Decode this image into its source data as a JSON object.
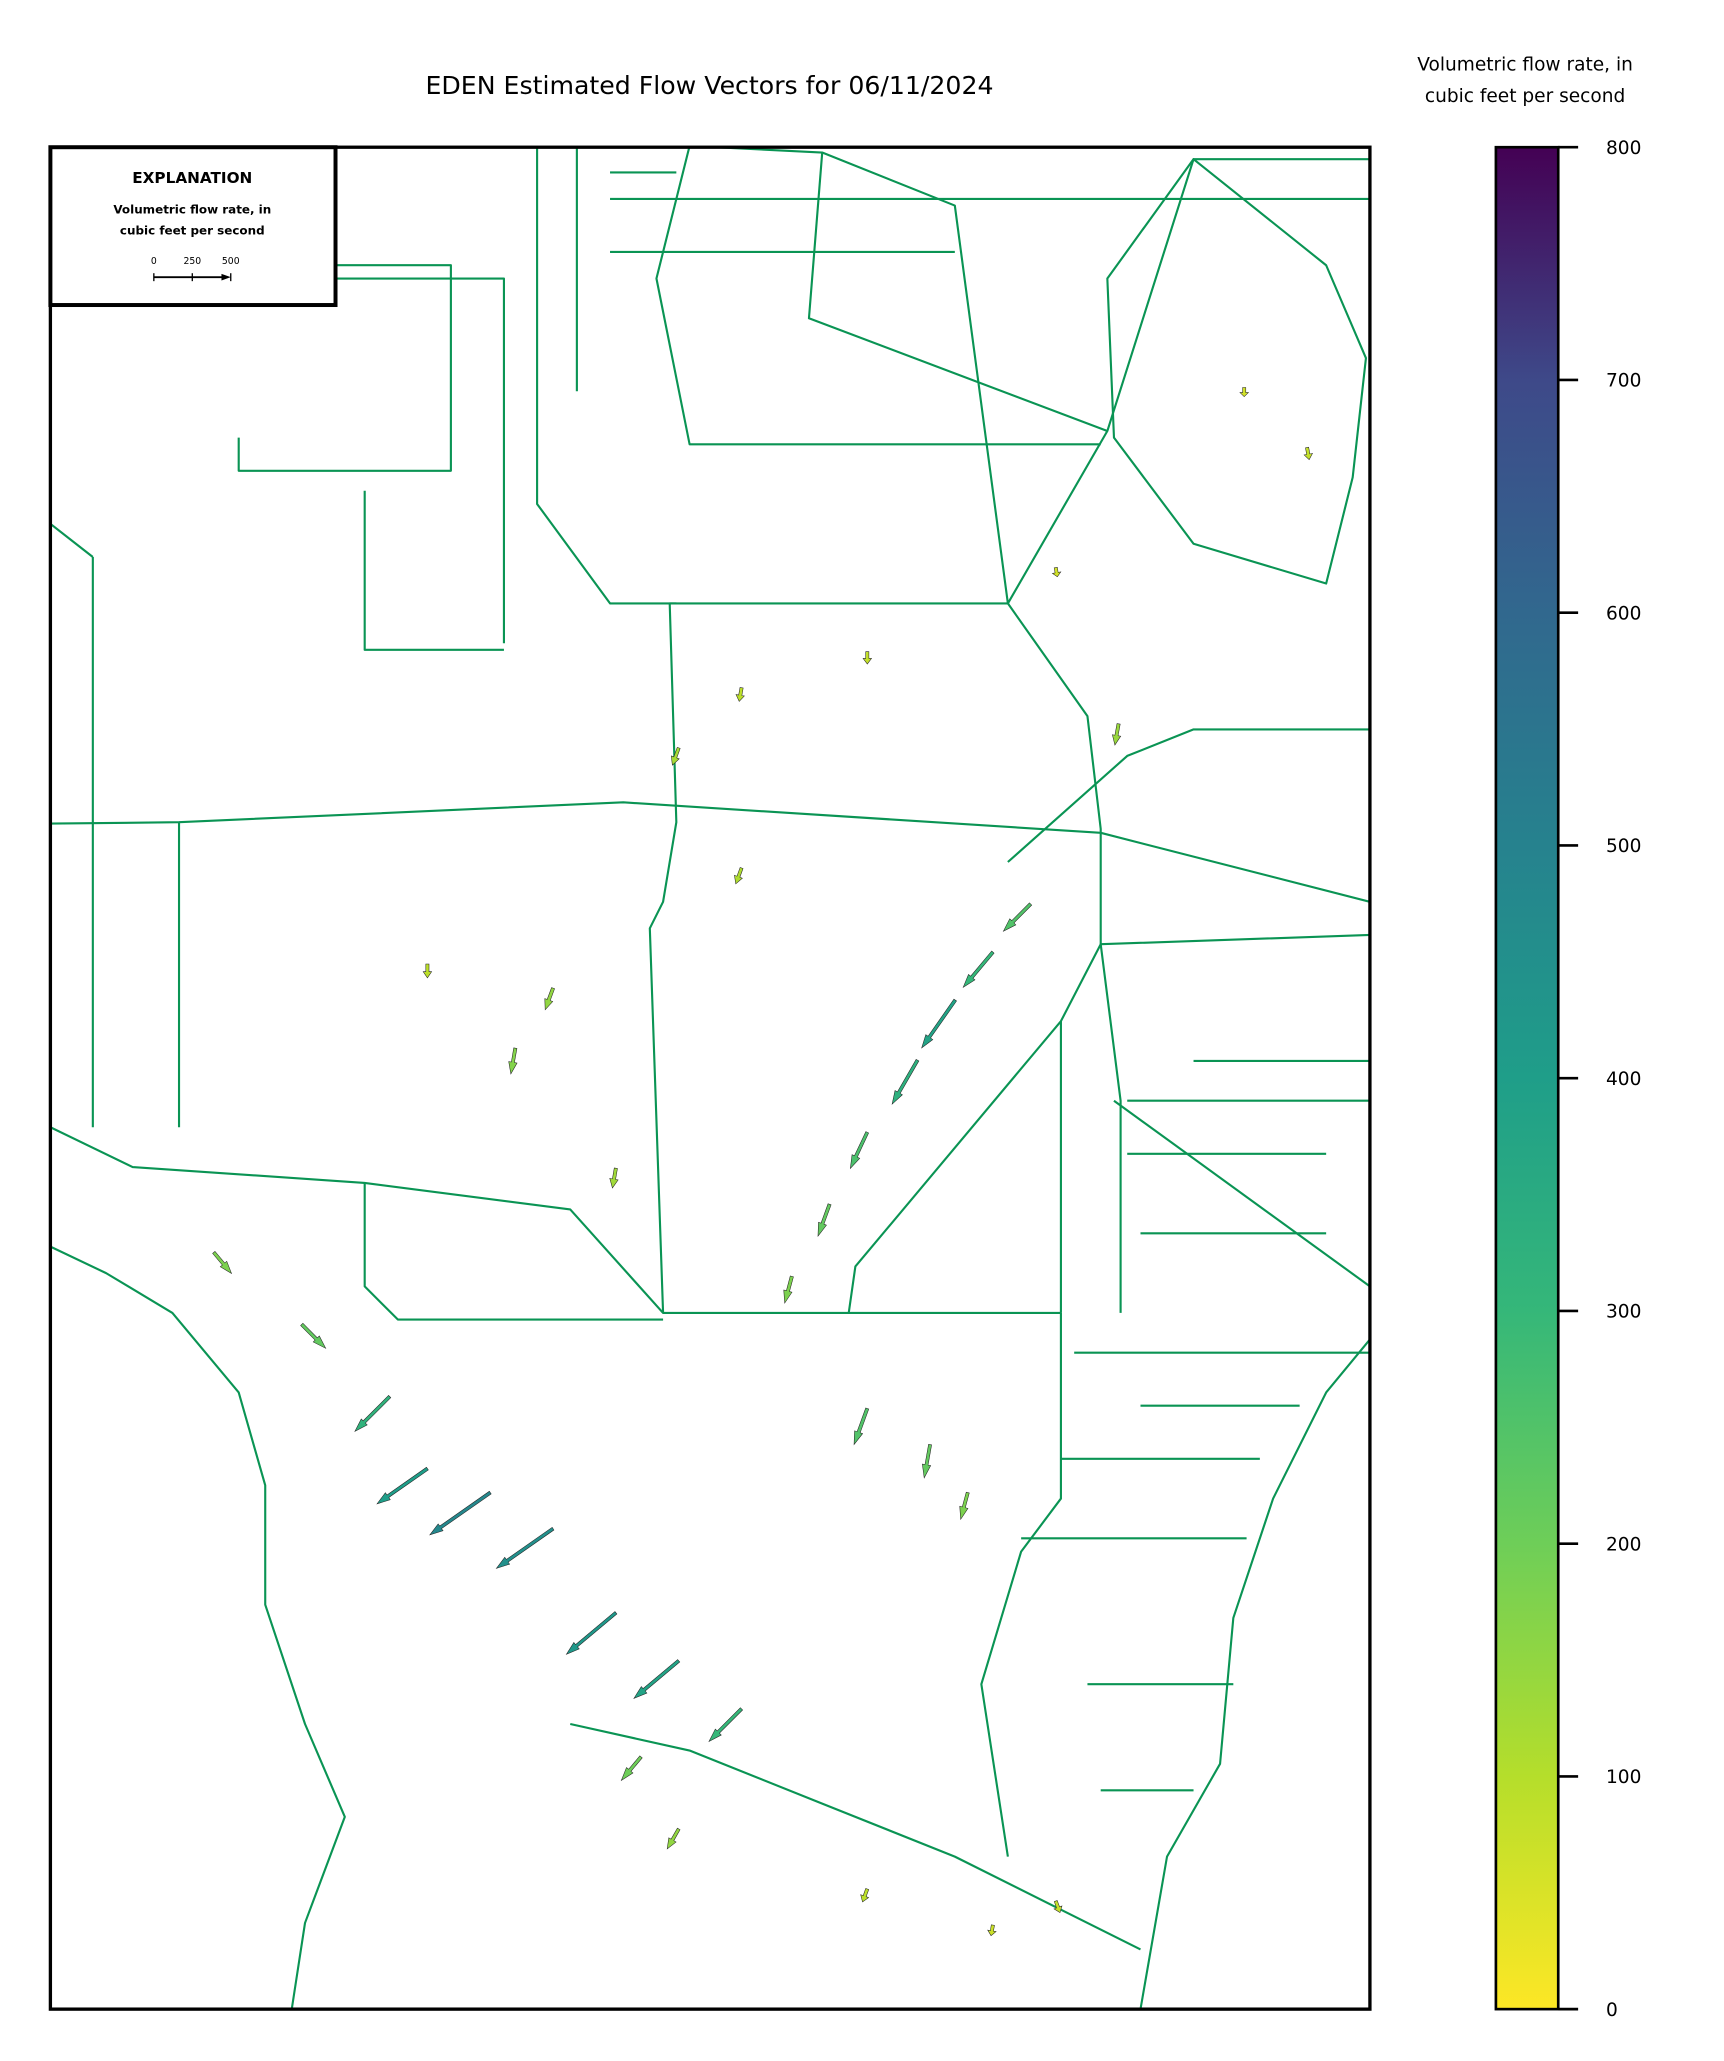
{
  "chart_data": {
    "type": "quiver",
    "title": "EDEN Estimated Flow Vectors for 06/11/2024",
    "colorbar": {
      "label": [
        "Volumetric flow rate, in",
        "cubic feet per second"
      ],
      "lim": [
        0,
        800
      ],
      "ticks": [
        0,
        100,
        200,
        300,
        400,
        500,
        600,
        700,
        800
      ],
      "colormap": "viridis_r"
    },
    "explanation": {
      "title": "EXPLANATION",
      "label": [
        "Volumetric flow rate, in",
        "cubic feet per second"
      ],
      "scale_ticks": [
        0,
        250,
        500
      ]
    },
    "xlim": [
      -81.35,
      -80.3
    ],
    "ylim": [
      25.15,
      26.7
    ],
    "vectors": [
      {
        "lon": -80.63,
        "lat": 25.99,
        "flow": 380,
        "direction": 215
      },
      {
        "lon": -80.6,
        "lat": 26.03,
        "flow": 300,
        "direction": 220
      },
      {
        "lon": -80.66,
        "lat": 25.94,
        "flow": 330,
        "direction": 210
      },
      {
        "lon": -80.7,
        "lat": 25.88,
        "flow": 260,
        "direction": 205
      },
      {
        "lon": -80.73,
        "lat": 25.82,
        "flow": 220,
        "direction": 200
      },
      {
        "lon": -80.57,
        "lat": 26.07,
        "flow": 250,
        "direction": 225
      },
      {
        "lon": -80.76,
        "lat": 25.76,
        "flow": 180,
        "direction": 195
      },
      {
        "lon": -80.85,
        "lat": 26.2,
        "flow": 120,
        "direction": 200
      },
      {
        "lon": -80.8,
        "lat": 26.25,
        "flow": 90,
        "direction": 190
      },
      {
        "lon": -80.7,
        "lat": 26.28,
        "flow": 80,
        "direction": 180
      },
      {
        "lon": -80.55,
        "lat": 26.35,
        "flow": 60,
        "direction": 170
      },
      {
        "lon": -80.5,
        "lat": 26.22,
        "flow": 140,
        "direction": 190
      },
      {
        "lon": -80.95,
        "lat": 26.0,
        "flow": 150,
        "direction": 200
      },
      {
        "lon": -80.98,
        "lat": 25.95,
        "flow": 170,
        "direction": 190
      },
      {
        "lon": -81.05,
        "lat": 26.02,
        "flow": 90,
        "direction": 180
      },
      {
        "lon": -81.22,
        "lat": 25.78,
        "flow": 180,
        "direction": 140
      },
      {
        "lon": -81.15,
        "lat": 25.72,
        "flow": 220,
        "direction": 135
      },
      {
        "lon": -81.08,
        "lat": 25.66,
        "flow": 320,
        "direction": 225
      },
      {
        "lon": -81.0,
        "lat": 25.58,
        "flow": 480,
        "direction": 235
      },
      {
        "lon": -80.95,
        "lat": 25.55,
        "flow": 450,
        "direction": 235
      },
      {
        "lon": -80.9,
        "lat": 25.48,
        "flow": 420,
        "direction": 230
      },
      {
        "lon": -80.85,
        "lat": 25.44,
        "flow": 380,
        "direction": 230
      },
      {
        "lon": -80.8,
        "lat": 25.4,
        "flow": 300,
        "direction": 225
      },
      {
        "lon": -80.88,
        "lat": 25.36,
        "flow": 200,
        "direction": 220
      },
      {
        "lon": -81.05,
        "lat": 25.6,
        "flow": 400,
        "direction": 235
      },
      {
        "lon": -80.7,
        "lat": 25.65,
        "flow": 250,
        "direction": 200
      },
      {
        "lon": -80.65,
        "lat": 25.62,
        "flow": 220,
        "direction": 190
      },
      {
        "lon": -80.62,
        "lat": 25.58,
        "flow": 180,
        "direction": 195
      },
      {
        "lon": -80.85,
        "lat": 25.3,
        "flow": 150,
        "direction": 210
      },
      {
        "lon": -80.7,
        "lat": 25.25,
        "flow": 90,
        "direction": 200
      },
      {
        "lon": -80.6,
        "lat": 25.22,
        "flow": 70,
        "direction": 190
      },
      {
        "lon": -80.55,
        "lat": 25.24,
        "flow": 80,
        "direction": 160
      },
      {
        "lon": -80.35,
        "lat": 26.45,
        "flow": 80,
        "direction": 170
      },
      {
        "lon": -80.4,
        "lat": 26.5,
        "flow": 60,
        "direction": 180
      },
      {
        "lon": -80.8,
        "lat": 26.1,
        "flow": 110,
        "direction": 200
      },
      {
        "lon": -80.9,
        "lat": 25.85,
        "flow": 130,
        "direction": 190
      }
    ]
  }
}
